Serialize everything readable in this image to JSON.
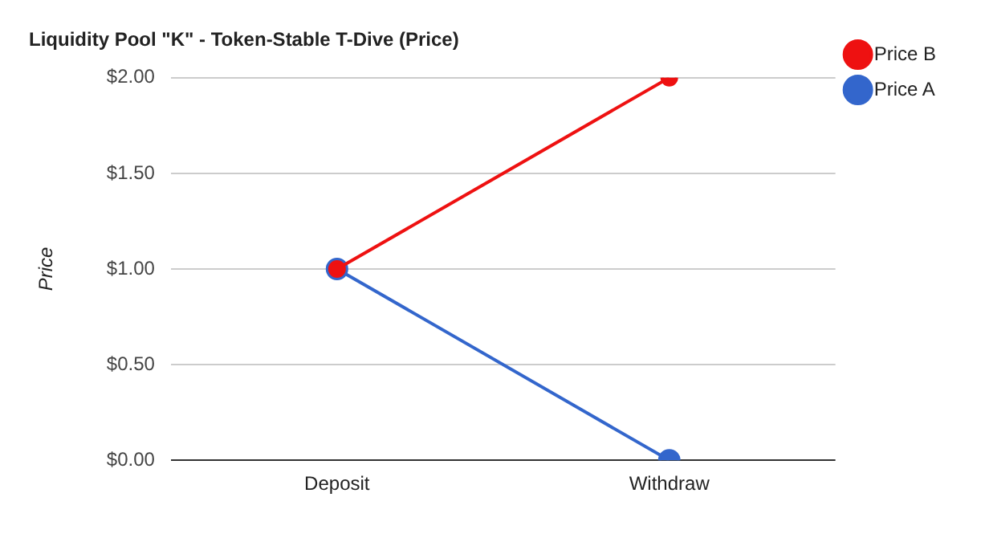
{
  "chart_data": {
    "type": "line",
    "title": "Liquidity Pool \"K\" - Token-Stable T-Dive (Price)",
    "ylabel": "Price",
    "categories": [
      "Deposit",
      "Withdraw"
    ],
    "series": [
      {
        "name": "Price A",
        "color": "#3366cc",
        "values": [
          1.0,
          0.0
        ]
      },
      {
        "name": "Price B",
        "color": "#ee1111",
        "values": [
          1.0,
          2.0
        ]
      }
    ],
    "ylim": [
      0,
      2
    ],
    "yticks": [
      {
        "value": 0,
        "label": "$0.00"
      },
      {
        "value": 0.5,
        "label": "$0.50"
      },
      {
        "value": 1,
        "label": "$1.00"
      },
      {
        "value": 1.5,
        "label": "$1.50"
      },
      {
        "value": 2,
        "label": "$2.00"
      }
    ],
    "grid": "y",
    "legend": "top right",
    "marker": "circle",
    "line_style": "solid"
  }
}
